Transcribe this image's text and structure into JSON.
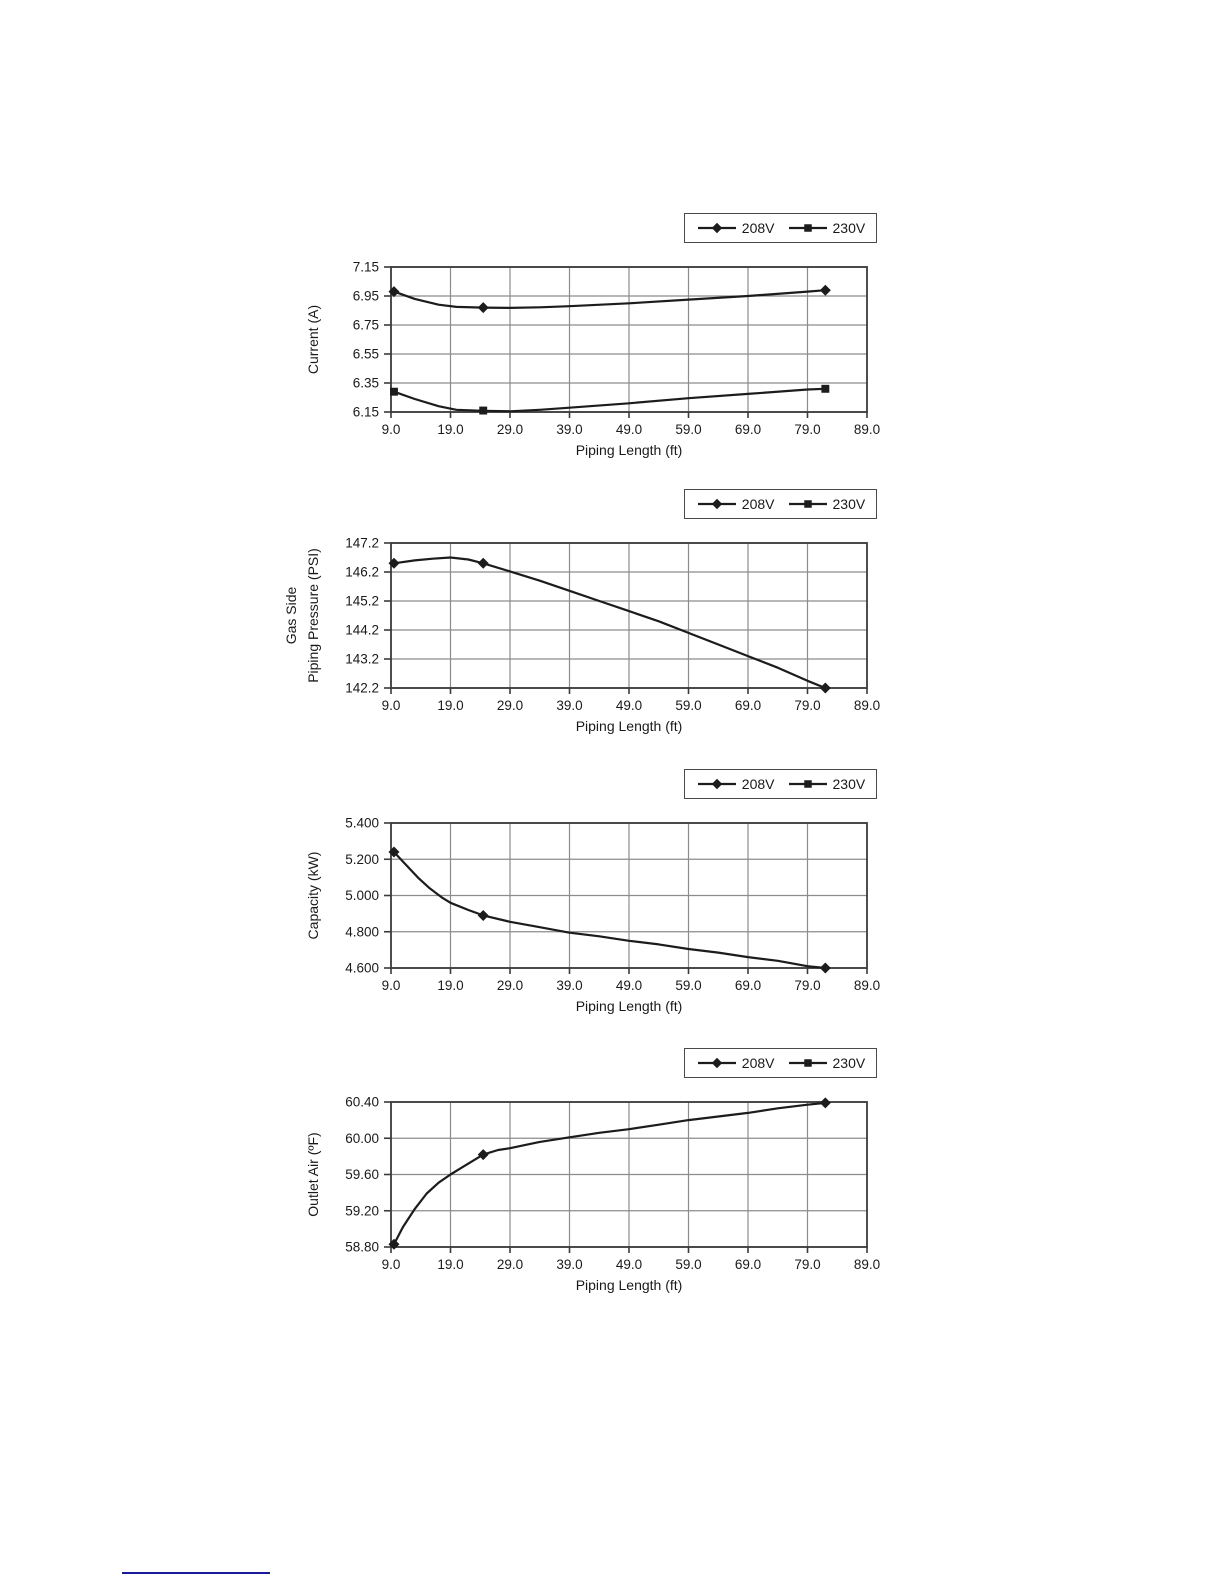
{
  "colors": {
    "line": "#1c1c1c",
    "grid": "#8c8c8c",
    "border": "#3a3a3a",
    "text": "#1a1a1a",
    "background": "#ffffff",
    "footnote_rule": "#1a1a99"
  },
  "legend": {
    "items": [
      {
        "label": "208V",
        "marker": "diamond"
      },
      {
        "label": "230V",
        "marker": "square"
      }
    ]
  },
  "chart_data": [
    {
      "id": "current",
      "type": "line",
      "ylabel_lines": [
        "Current (A)"
      ],
      "xlabel": "Piping Length (ft)",
      "xlim": [
        9,
        89
      ],
      "xticks": [
        9,
        19,
        29,
        39,
        49,
        59,
        69,
        79,
        89
      ],
      "xtick_labels": [
        "9.0",
        "19.0",
        "29.0",
        "39.0",
        "49.0",
        "59.0",
        "69.0",
        "79.0",
        "89.0"
      ],
      "ylim": [
        6.15,
        7.15
      ],
      "yticks": [
        7.15,
        6.95,
        6.75,
        6.55,
        6.35,
        6.15
      ],
      "ytick_labels": [
        "7.15",
        "6.95",
        "6.75",
        "6.55",
        "6.35",
        "6.15"
      ],
      "series": [
        {
          "name": "208V",
          "marker": "diamond",
          "points": [
            [
              9.5,
              6.98
            ],
            [
              24.5,
              6.87
            ],
            [
              82,
              6.99
            ]
          ],
          "path": [
            [
              9.5,
              6.98
            ],
            [
              13,
              6.93
            ],
            [
              17,
              6.89
            ],
            [
              20,
              6.875
            ],
            [
              24.5,
              6.87
            ],
            [
              29,
              6.868
            ],
            [
              34,
              6.872
            ],
            [
              39,
              6.88
            ],
            [
              49,
              6.9
            ],
            [
              59,
              6.925
            ],
            [
              69,
              6.95
            ],
            [
              79,
              6.98
            ],
            [
              82,
              6.99
            ]
          ]
        },
        {
          "name": "230V",
          "marker": "square",
          "points": [
            [
              9.5,
              6.29
            ],
            [
              24.5,
              6.16
            ],
            [
              82,
              6.31
            ]
          ],
          "path": [
            [
              9.5,
              6.29
            ],
            [
              13,
              6.24
            ],
            [
              17,
              6.19
            ],
            [
              20,
              6.165
            ],
            [
              24.5,
              6.158
            ],
            [
              29,
              6.155
            ],
            [
              34,
              6.165
            ],
            [
              39,
              6.18
            ],
            [
              49,
              6.21
            ],
            [
              59,
              6.245
            ],
            [
              69,
              6.275
            ],
            [
              79,
              6.305
            ],
            [
              82,
              6.31
            ]
          ]
        }
      ]
    },
    {
      "id": "gas-pressure",
      "type": "line",
      "ylabel_lines": [
        "Gas Side",
        "Piping Pressure (PSI)"
      ],
      "xlabel": "Piping Length (ft)",
      "xlim": [
        9,
        89
      ],
      "xticks": [
        9,
        19,
        29,
        39,
        49,
        59,
        69,
        79,
        89
      ],
      "xtick_labels": [
        "9.0",
        "19.0",
        "29.0",
        "39.0",
        "49.0",
        "59.0",
        "69.0",
        "79.0",
        "89.0"
      ],
      "ylim": [
        142.2,
        147.2
      ],
      "yticks": [
        147.2,
        146.2,
        145.2,
        144.2,
        143.2,
        142.2
      ],
      "ytick_labels": [
        "147.2",
        "146.2",
        "145.2",
        "144.2",
        "143.2",
        "142.2"
      ],
      "series": [
        {
          "name": "208V",
          "marker": "diamond",
          "points": [
            [
              9.5,
              146.5
            ],
            [
              24.5,
              146.5
            ],
            [
              82,
              142.2
            ]
          ],
          "path": [
            [
              9.5,
              146.5
            ],
            [
              13,
              146.6
            ],
            [
              16,
              146.66
            ],
            [
              19,
              146.7
            ],
            [
              22,
              146.63
            ],
            [
              24.5,
              146.5
            ],
            [
              29,
              146.22
            ],
            [
              34,
              145.9
            ],
            [
              39,
              145.55
            ],
            [
              44,
              145.2
            ],
            [
              49,
              144.85
            ],
            [
              54,
              144.5
            ],
            [
              59,
              144.1
            ],
            [
              64,
              143.7
            ],
            [
              69,
              143.3
            ],
            [
              74,
              142.9
            ],
            [
              79,
              142.45
            ],
            [
              82,
              142.2
            ]
          ]
        }
      ]
    },
    {
      "id": "capacity",
      "type": "line",
      "ylabel_lines": [
        "Capacity (kW)"
      ],
      "xlabel": "Piping Length (ft)",
      "xlim": [
        9,
        89
      ],
      "xticks": [
        9,
        19,
        29,
        39,
        49,
        59,
        69,
        79,
        89
      ],
      "xtick_labels": [
        "9.0",
        "19.0",
        "29.0",
        "39.0",
        "49.0",
        "59.0",
        "69.0",
        "79.0",
        "89.0"
      ],
      "ylim": [
        4.6,
        5.4
      ],
      "yticks": [
        5.4,
        5.2,
        5.0,
        4.8,
        4.6
      ],
      "ytick_labels": [
        "5.400",
        "5.200",
        "5.000",
        "4.800",
        "4.600"
      ],
      "series": [
        {
          "name": "208V",
          "marker": "diamond",
          "points": [
            [
              9.5,
              5.24
            ],
            [
              24.5,
              4.89
            ],
            [
              82,
              4.6
            ]
          ],
          "path": [
            [
              9.5,
              5.24
            ],
            [
              11.5,
              5.17
            ],
            [
              13.5,
              5.1
            ],
            [
              15.5,
              5.04
            ],
            [
              17.5,
              4.99
            ],
            [
              19,
              4.96
            ],
            [
              22,
              4.92
            ],
            [
              24.5,
              4.89
            ],
            [
              29,
              4.855
            ],
            [
              34,
              4.825
            ],
            [
              39,
              4.795
            ],
            [
              44,
              4.775
            ],
            [
              49,
              4.75
            ],
            [
              54,
              4.73
            ],
            [
              59,
              4.705
            ],
            [
              64,
              4.685
            ],
            [
              69,
              4.66
            ],
            [
              74,
              4.64
            ],
            [
              79,
              4.61
            ],
            [
              82,
              4.6
            ]
          ]
        }
      ]
    },
    {
      "id": "outlet-air",
      "type": "line",
      "ylabel_lines": [
        "Outlet Air (ºF)"
      ],
      "xlabel": "Piping Length (ft)",
      "xlim": [
        9,
        89
      ],
      "xticks": [
        9,
        19,
        29,
        39,
        49,
        59,
        69,
        79,
        89
      ],
      "xtick_labels": [
        "9.0",
        "19.0",
        "29.0",
        "39.0",
        "49.0",
        "59.0",
        "69.0",
        "79.0",
        "89.0"
      ],
      "ylim": [
        58.8,
        60.4
      ],
      "yticks": [
        60.4,
        60.0,
        59.6,
        59.2,
        58.8
      ],
      "ytick_labels": [
        "60.40",
        "60.00",
        "59.60",
        "59.20",
        "58.80"
      ],
      "series": [
        {
          "name": "208V",
          "marker": "diamond",
          "points": [
            [
              9.5,
              58.83
            ],
            [
              24.5,
              59.82
            ],
            [
              82,
              60.39
            ]
          ],
          "path": [
            [
              9.5,
              58.83
            ],
            [
              11,
              59.02
            ],
            [
              13,
              59.22
            ],
            [
              15,
              59.39
            ],
            [
              17,
              59.51
            ],
            [
              19,
              59.6
            ],
            [
              21,
              59.68
            ],
            [
              24.5,
              59.82
            ],
            [
              27,
              59.87
            ],
            [
              29,
              59.89
            ],
            [
              34,
              59.96
            ],
            [
              39,
              60.01
            ],
            [
              44,
              60.06
            ],
            [
              49,
              60.1
            ],
            [
              54,
              60.15
            ],
            [
              59,
              60.2
            ],
            [
              64,
              60.24
            ],
            [
              69,
              60.28
            ],
            [
              74,
              60.33
            ],
            [
              79,
              60.37
            ],
            [
              82,
              60.39
            ]
          ]
        }
      ]
    }
  ]
}
